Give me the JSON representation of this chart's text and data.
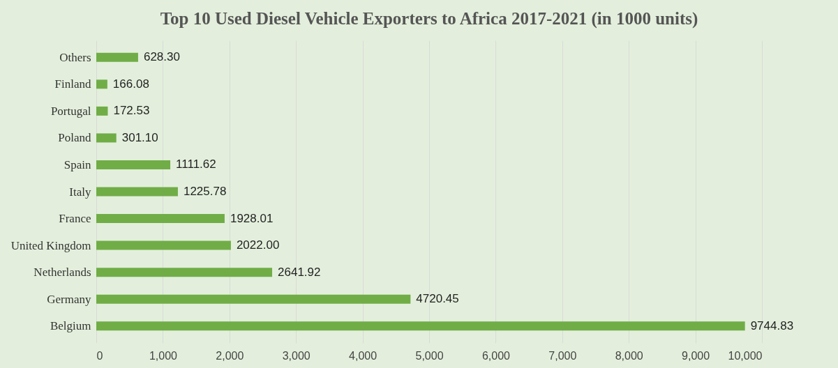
{
  "chart_data": {
    "type": "bar",
    "orientation": "horizontal",
    "title": "Top 10 Used Diesel Vehicle Exporters to Africa 2017-2021 (in 1000 units)",
    "categories": [
      "Others",
      "Finland",
      "Portugal",
      "Poland",
      "Spain",
      "Italy",
      "France",
      "United Kingdom",
      "Netherlands",
      "Germany",
      "Belgium"
    ],
    "values": [
      628.3,
      166.08,
      172.53,
      301.1,
      1111.62,
      1225.78,
      1928.01,
      2022.0,
      2641.92,
      4720.45,
      9744.83
    ],
    "value_labels": [
      "628.30",
      "166.08",
      "172.53",
      "301.10",
      "1111.62",
      "1225.78",
      "1928.01",
      "2022.00",
      "2641.92",
      "4720.45",
      "9744.83"
    ],
    "color": "#70ad47",
    "xlim": [
      0,
      10000
    ],
    "xticks": [
      0,
      {
        "value": 1000,
        "label": "1,000"
      },
      {
        "value": 2000,
        "label": "2,000"
      },
      {
        "value": 3000,
        "label": "3,000"
      },
      {
        "value": 4000,
        "label": "4,000"
      },
      {
        "value": 5000,
        "label": "5,000"
      },
      {
        "value": 6000,
        "label": "6,000"
      },
      {
        "value": 7000,
        "label": "7,000"
      },
      {
        "value": 8000,
        "label": "8,000"
      },
      {
        "value": 9000,
        "label": "9,000"
      },
      {
        "value": 10000,
        "label": "10,000"
      }
    ],
    "grid": "x"
  }
}
